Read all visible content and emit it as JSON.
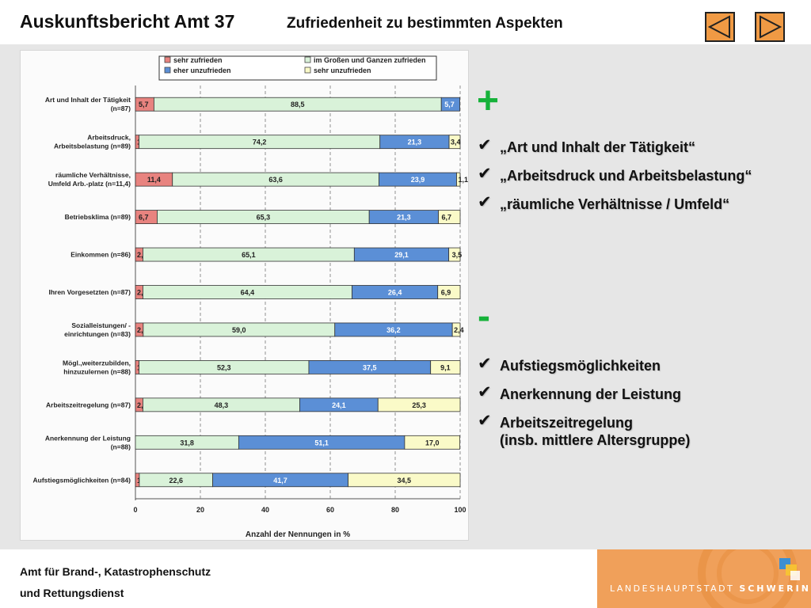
{
  "header": {
    "title": "Auskunftsbericht Amt 37",
    "subtitle": "Zufriedenheit zu bestimmten Aspekten",
    "nav_prev": "previous-slide",
    "nav_next": "next-slide"
  },
  "positive": {
    "symbol": "+",
    "items": [
      "„Art und Inhalt der Tätigkeit“",
      "„Arbeitsdruck und Arbeitsbelastung“",
      "„räumliche Verhältnisse / Umfeld“"
    ]
  },
  "negative": {
    "symbol": "-",
    "items": [
      "Aufstiegsmöglichkeiten",
      "Anerkennung der Leistung",
      "Arbeitszeitregelung\n(insb. mittlere Altersgruppe)"
    ]
  },
  "footer": {
    "dept_line1": "Amt für Brand-, Katastrophenschutz",
    "dept_line2": "und  Rettungsdienst",
    "brand_light": "LANDESHAUPTSTADT",
    "brand_bold": "SCHWERIN"
  },
  "chart_data": {
    "type": "bar",
    "orientation": "horizontal",
    "stacked": true,
    "xlabel": "Anzahl der Nennungen in %",
    "xlim": [
      0,
      100
    ],
    "xticks": [
      "0",
      "20",
      "40",
      "60",
      "80",
      "100"
    ],
    "legend_position": "top",
    "categories": [
      [
        "Art und Inhalt der Tätigkeit",
        "(n=87)"
      ],
      [
        "Arbeitsdruck,",
        "Arbeitsbelastung (n=89)"
      ],
      [
        "räumliche Verhältnisse,",
        "Umfeld Arb.-platz (n=11,4)"
      ],
      [
        "Betriebsklima (n=89)"
      ],
      [
        "Einkommen (n=86)"
      ],
      [
        "Ihren Vorgesetzten (n=87)"
      ],
      [
        "Sozialleistungen/ -",
        "einrichtungen (n=83)"
      ],
      [
        "Mögl.,weiterzubilden,",
        "hinzuzulernen (n=88)"
      ],
      [
        "Arbeitszeitregelung (n=87)"
      ],
      [
        "Anerkennung der Leistung",
        "(n=88)"
      ],
      [
        "Aufstiegsmöglichkeiten (n=84)"
      ]
    ],
    "series": [
      {
        "name": "sehr zufrieden",
        "color": "#e8837f",
        "values": [
          5.7,
          1.1,
          11.4,
          6.7,
          2.3,
          2.3,
          2.4,
          1.1,
          2.3,
          0,
          1.2
        ]
      },
      {
        "name": "im Großen und Ganzen zufrieden",
        "color": "#d9f2d9",
        "values": [
          88.5,
          74.2,
          63.6,
          65.3,
          65.1,
          64.4,
          59.0,
          52.3,
          48.3,
          31.8,
          22.6
        ]
      },
      {
        "name": "eher unzufrieden",
        "color": "#5b8fd6",
        "values": [
          5.7,
          21.3,
          23.9,
          21.3,
          29.1,
          26.4,
          36.2,
          37.5,
          24.1,
          51.1,
          41.7
        ]
      },
      {
        "name": "sehr unzufrieden",
        "color": "#fafac8",
        "values": [
          0,
          3.4,
          1.1,
          6.7,
          3.5,
          6.9,
          2.4,
          9.1,
          25.3,
          17.0,
          34.5
        ]
      }
    ],
    "grid": "dashed vertical"
  }
}
